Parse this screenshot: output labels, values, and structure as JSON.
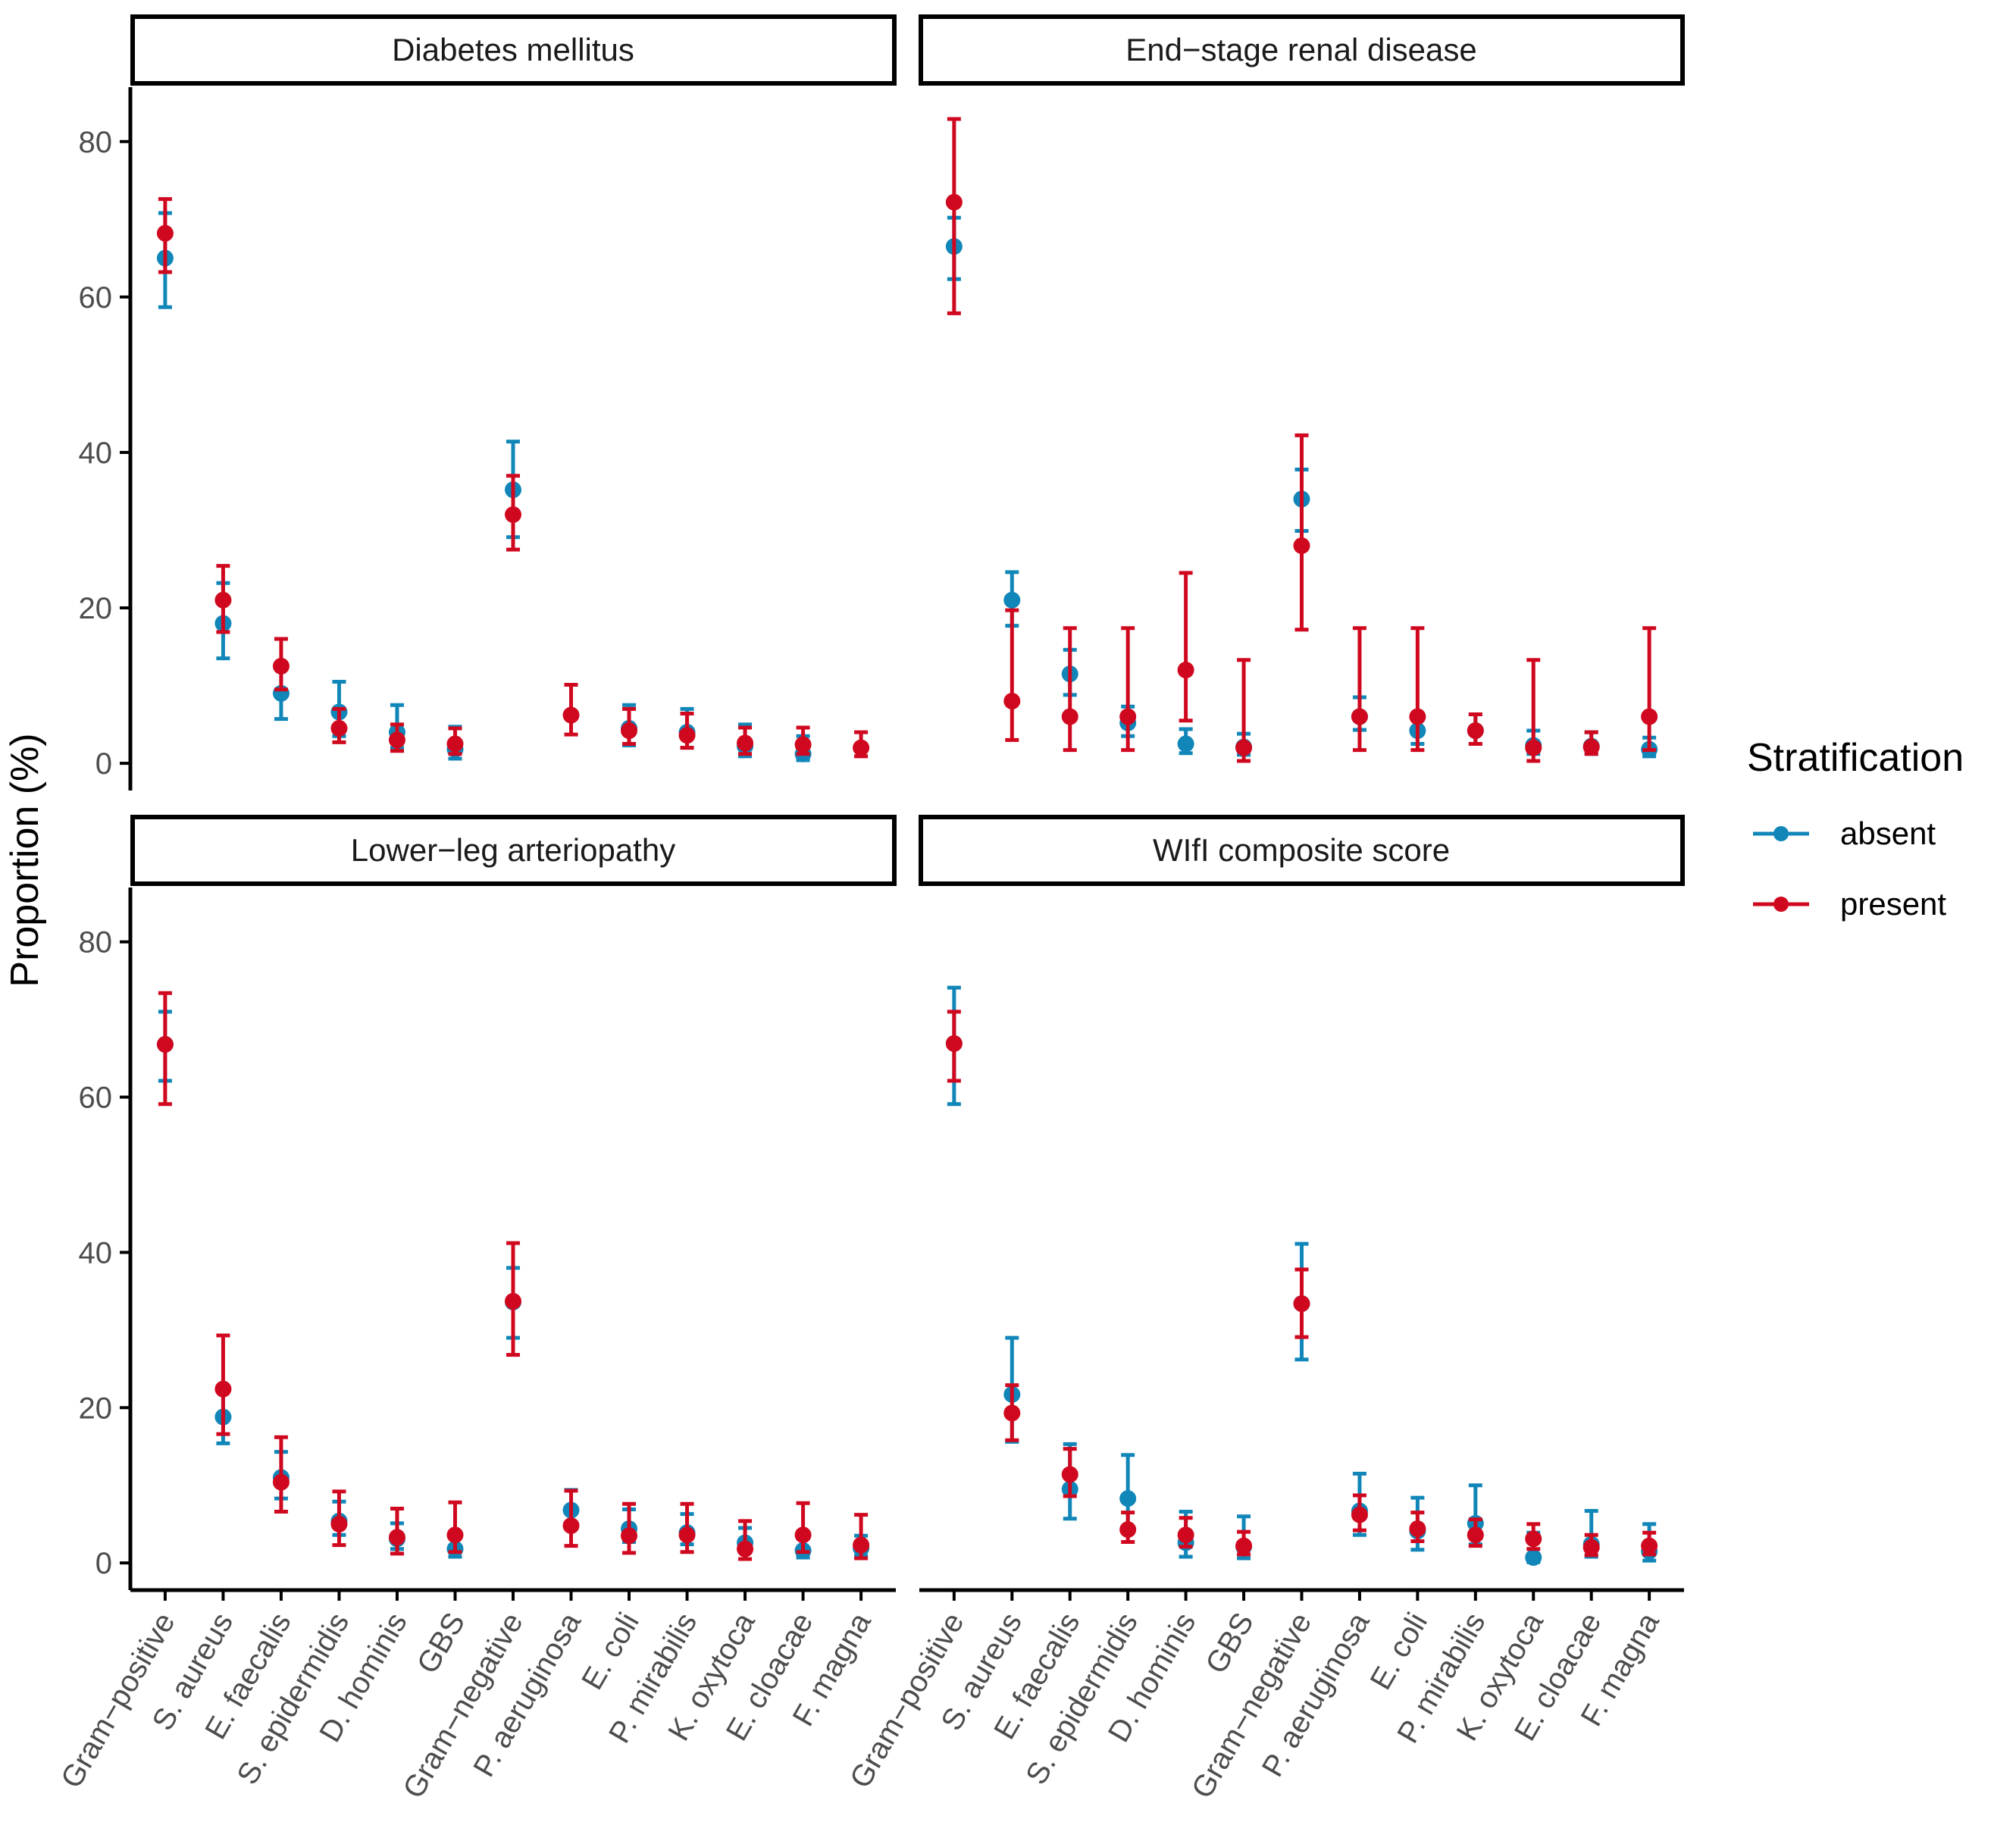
{
  "chart_data": {
    "type": "scatter",
    "subtype": "point-with-errorbars, faceted 2x2",
    "ylabel": "Proportion (%)",
    "xlabel": "",
    "ylim": [
      -3.5,
      87
    ],
    "yticks": [
      0,
      20,
      40,
      60,
      80
    ],
    "categories": [
      "Gram−positive",
      "S. aureus",
      "E. faecalis",
      "S. epidermidis",
      "D. hominis",
      "GBS",
      "Gram−negative",
      "P. aeruginosa",
      "E. coli",
      "P. mirabilis",
      "K. oxytoca",
      "E. cloacae",
      "F. magna"
    ],
    "legend": {
      "title": "Stratification",
      "placement": "right",
      "items": [
        {
          "name": "absent",
          "color": "#1186B8"
        },
        {
          "name": "present",
          "color": "#D0081F"
        }
      ]
    },
    "facets": [
      {
        "title": "Diabetes mellitus",
        "series": [
          {
            "name": "absent",
            "values": [
              65,
              18,
              9,
              6.6,
              4,
              1.8,
              35.2,
              null,
              4.5,
              4,
              2.2,
              1.2,
              null
            ],
            "lower": [
              58.7,
              13.5,
              5.7,
              3.5,
              2,
              0.6,
              29.1,
              null,
              2.3,
              2,
              0.9,
              0.4,
              null
            ],
            "upper": [
              70.8,
              23.2,
              12.7,
              10.5,
              7.5,
              4.7,
              41.4,
              null,
              7.5,
              7,
              5,
              3.5,
              null
            ]
          },
          {
            "name": "present",
            "values": [
              68.2,
              21,
              12.5,
              4.5,
              3,
              2.5,
              32,
              6.2,
              4.2,
              3.6,
              2.6,
              2.4,
              2
            ],
            "lower": [
              63.2,
              16.9,
              9.5,
              2.7,
              1.6,
              1.2,
              27.5,
              3.7,
              2.5,
              2,
              1.2,
              1.2,
              0.9
            ],
            "upper": [
              72.6,
              25.4,
              16,
              7,
              5,
              4.5,
              37,
              10.1,
              7,
              6.4,
              4.6,
              4.6,
              4
            ]
          }
        ]
      },
      {
        "title": "End−stage renal disease",
        "series": [
          {
            "name": "absent",
            "values": [
              66.5,
              21,
              11.5,
              5.2,
              2.5,
              2.1,
              34,
              6,
              4.2,
              4.2,
              2.3,
              2.2,
              1.8
            ],
            "lower": [
              62.3,
              17.7,
              8.8,
              3.5,
              1.3,
              1.1,
              29.9,
              4.3,
              2.5,
              2.5,
              1.2,
              1.2,
              0.9
            ],
            "upper": [
              70.2,
              24.6,
              14.6,
              7.3,
              4.4,
              3.8,
              37.8,
              8.5,
              6.3,
              6.3,
              4.2,
              4,
              3.3
            ]
          },
          {
            "name": "present",
            "values": [
              72.2,
              8,
              6,
              6,
              12,
              2,
              28,
              6,
              6,
              4.2,
              2,
              2.1,
              6
            ],
            "lower": [
              57.9,
              3,
              1.7,
              1.7,
              5.5,
              0.3,
              17.2,
              1.7,
              1.7,
              2.5,
              0.3,
              1.2,
              1.7
            ],
            "upper": [
              82.9,
              19.7,
              17.4,
              17.4,
              24.5,
              13.3,
              42.2,
              17.4,
              17.4,
              6.3,
              13.3,
              4,
              17.4
            ]
          }
        ]
      },
      {
        "title": "Lower−leg arteriopathy",
        "series": [
          {
            "name": "absent",
            "values": [
              66.8,
              18.8,
              11,
              5.4,
              3.1,
              1.8,
              33.6,
              6.8,
              4.4,
              3.9,
              2.6,
              1.6,
              1.9
            ],
            "lower": [
              62.1,
              15.4,
              8.3,
              3.6,
              1.8,
              0.8,
              29,
              4.6,
              2.7,
              2.4,
              1.4,
              0.7,
              0.9
            ],
            "upper": [
              71,
              22.8,
              14.3,
              7.9,
              5.1,
              3.4,
              38,
              9.4,
              6.9,
              6.3,
              4.5,
              3.2,
              3.5
            ]
          },
          {
            "name": "present",
            "values": [
              66.8,
              22.4,
              10.4,
              5,
              3.3,
              3.6,
              33.7,
              4.8,
              3.5,
              3.6,
              1.8,
              3.6,
              2.3
            ],
            "lower": [
              59.1,
              16.6,
              6.6,
              2.3,
              1.2,
              1.4,
              26.8,
              2.2,
              1.3,
              1.4,
              0.5,
              1.4,
              0.6
            ],
            "upper": [
              73.4,
              29.3,
              16.2,
              9.2,
              7,
              7.8,
              41.2,
              9.3,
              7.6,
              7.6,
              5.4,
              7.7,
              6.2
            ]
          }
        ]
      },
      {
        "title": "WIfI composite score",
        "series": [
          {
            "name": "absent",
            "values": [
              66.9,
              21.7,
              9.5,
              8.3,
              2.6,
              2.1,
              33.4,
              6.7,
              4.1,
              5.1,
              0.7,
              2.4,
              1.5
            ],
            "lower": [
              59.1,
              15.6,
              5.7,
              4.5,
              0.8,
              0.6,
              26.2,
              3.6,
              1.7,
              2.4,
              0.1,
              0.8,
              0.3
            ],
            "upper": [
              74.1,
              29,
              15.3,
              13.9,
              6.6,
              6,
              41.1,
              11.5,
              8.4,
              10,
              3.9,
              6.7,
              5
            ]
          },
          {
            "name": "present",
            "values": [
              66.9,
              19.3,
              11.4,
              4.3,
              3.6,
              2.2,
              33.4,
              6.2,
              4.4,
              3.6,
              3.1,
              2,
              2.2
            ],
            "lower": [
              62.1,
              15.8,
              8.6,
              2.7,
              2.1,
              1.1,
              29.1,
              4.2,
              2.8,
              2.2,
              1.8,
              1,
              1.1
            ],
            "upper": [
              71,
              22.9,
              14.7,
              6.5,
              5.8,
              4,
              37.8,
              8.7,
              6.5,
              5.6,
              5,
              3.6,
              3.9
            ]
          }
        ]
      }
    ]
  }
}
